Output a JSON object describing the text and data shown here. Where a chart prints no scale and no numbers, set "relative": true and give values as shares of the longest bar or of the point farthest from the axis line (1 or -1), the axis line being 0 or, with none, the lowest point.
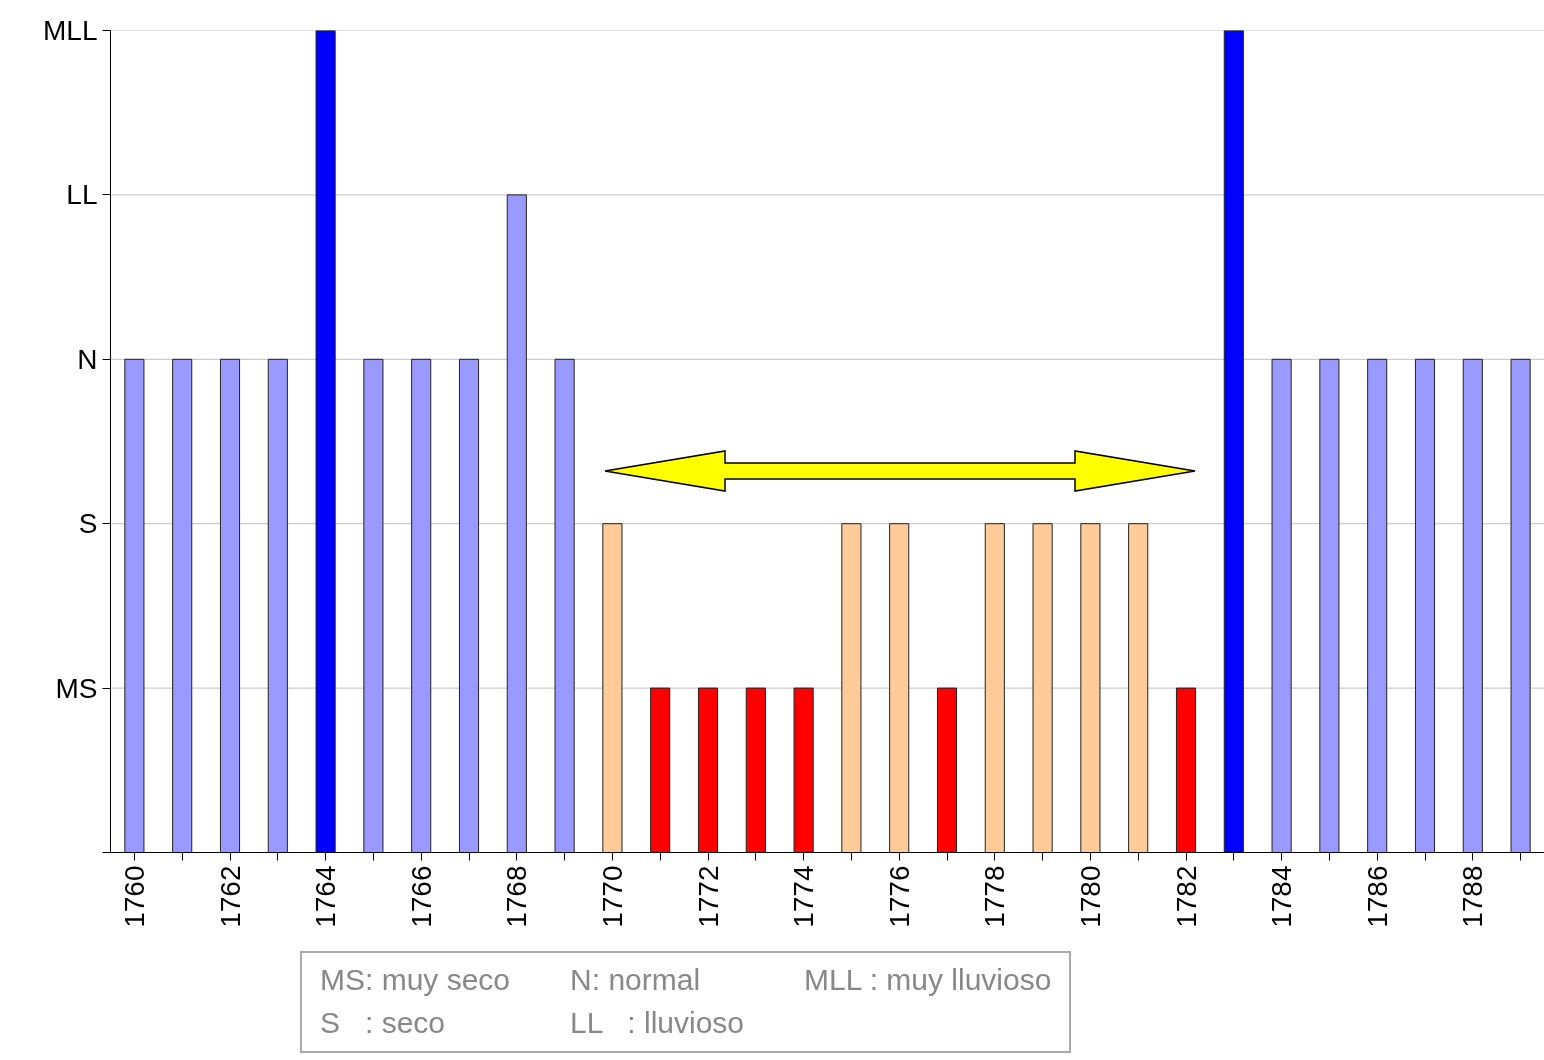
{
  "chart_data": {
    "type": "bar",
    "relative": true,
    "categories": [
      "1760",
      null,
      "1762",
      null,
      "1764",
      null,
      "1766",
      null,
      "1768",
      null,
      "1770",
      null,
      "1772",
      null,
      "1774",
      null,
      "1776",
      null,
      "1778",
      null,
      "1780",
      null,
      "1782",
      null,
      "1784",
      null,
      "1786",
      null,
      "1788",
      null
    ],
    "values": [
      0.6,
      0.6,
      0.6,
      0.6,
      1,
      0.6,
      0.6,
      0.6,
      0.8,
      0.6,
      0.4,
      0.2,
      0.2,
      0.2,
      0.2,
      0.4,
      0.4,
      0.2,
      0.4,
      0.4,
      0.4,
      0.4,
      0.2,
      1,
      0.6,
      0.6,
      0.6,
      0.6,
      0.6,
      0.6
    ],
    "colors": [
      "#9999ff",
      "#9999ff",
      "#9999ff",
      "#9999ff",
      "#0000ff",
      "#9999ff",
      "#9999ff",
      "#9999ff",
      "#9999ff",
      "#9999ff",
      "#ffcc99",
      "#ff0000",
      "#ff0000",
      "#ff0000",
      "#ff0000",
      "#ffcc99",
      "#ffcc99",
      "#ff0000",
      "#ffcc99",
      "#ffcc99",
      "#ffcc99",
      "#ffcc99",
      "#ff0000",
      "#0000ff",
      "#9999ff",
      "#9999ff",
      "#9999ff",
      "#9999ff",
      "#9999ff",
      "#9999ff"
    ],
    "ref_lines": [
      {
        "axis": "y",
        "value": 0.2,
        "label": "MS",
        "color": "#c0c0c0"
      },
      {
        "axis": "y",
        "value": 0.4,
        "label": "S",
        "color": "#c0c0c0"
      },
      {
        "axis": "y",
        "value": 0.6,
        "label": "N",
        "color": "#c0c0c0"
      },
      {
        "axis": "y",
        "value": 0.8,
        "label": "LL",
        "color": "#c0c0c0"
      },
      {
        "axis": "y",
        "value": 1,
        "label": "MLL",
        "color": "#c0c0c0"
      }
    ],
    "annotations": [
      "MS: muy seco",
      "N: normal",
      "MLL : muy lluvioso",
      "S   : seco",
      "LL   : lluvioso"
    ]
  }
}
